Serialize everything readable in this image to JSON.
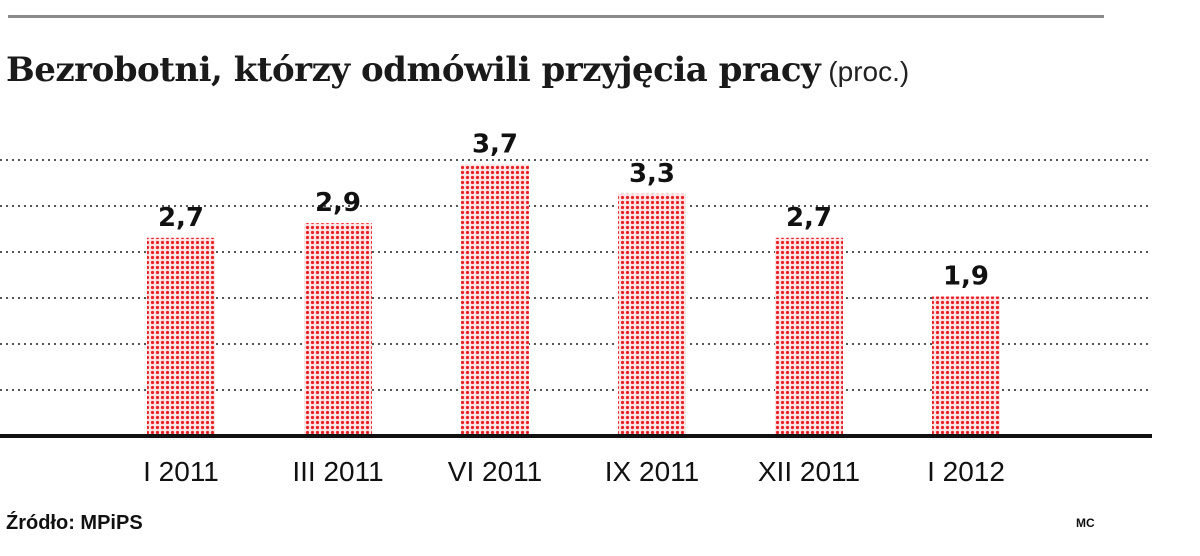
{
  "chart_data": {
    "type": "bar",
    "title": "Bezrobotni, którzy odmówili przyjęcia pracy",
    "unit": "(proc.)",
    "categories": [
      "I 2011",
      "III 2011",
      "VI 2011",
      "IX 2011",
      "XII 2011",
      "I 2012"
    ],
    "values": [
      2.7,
      2.9,
      3.7,
      3.3,
      2.7,
      1.9
    ],
    "value_labels": [
      "2,7",
      "2,9",
      "3,7",
      "3,3",
      "2,7",
      "1,9"
    ],
    "ylim": [
      0,
      4.4
    ],
    "grid": true,
    "bar_color": "#e8242b",
    "source": "Źródło: MPiPS",
    "author": "MC"
  }
}
